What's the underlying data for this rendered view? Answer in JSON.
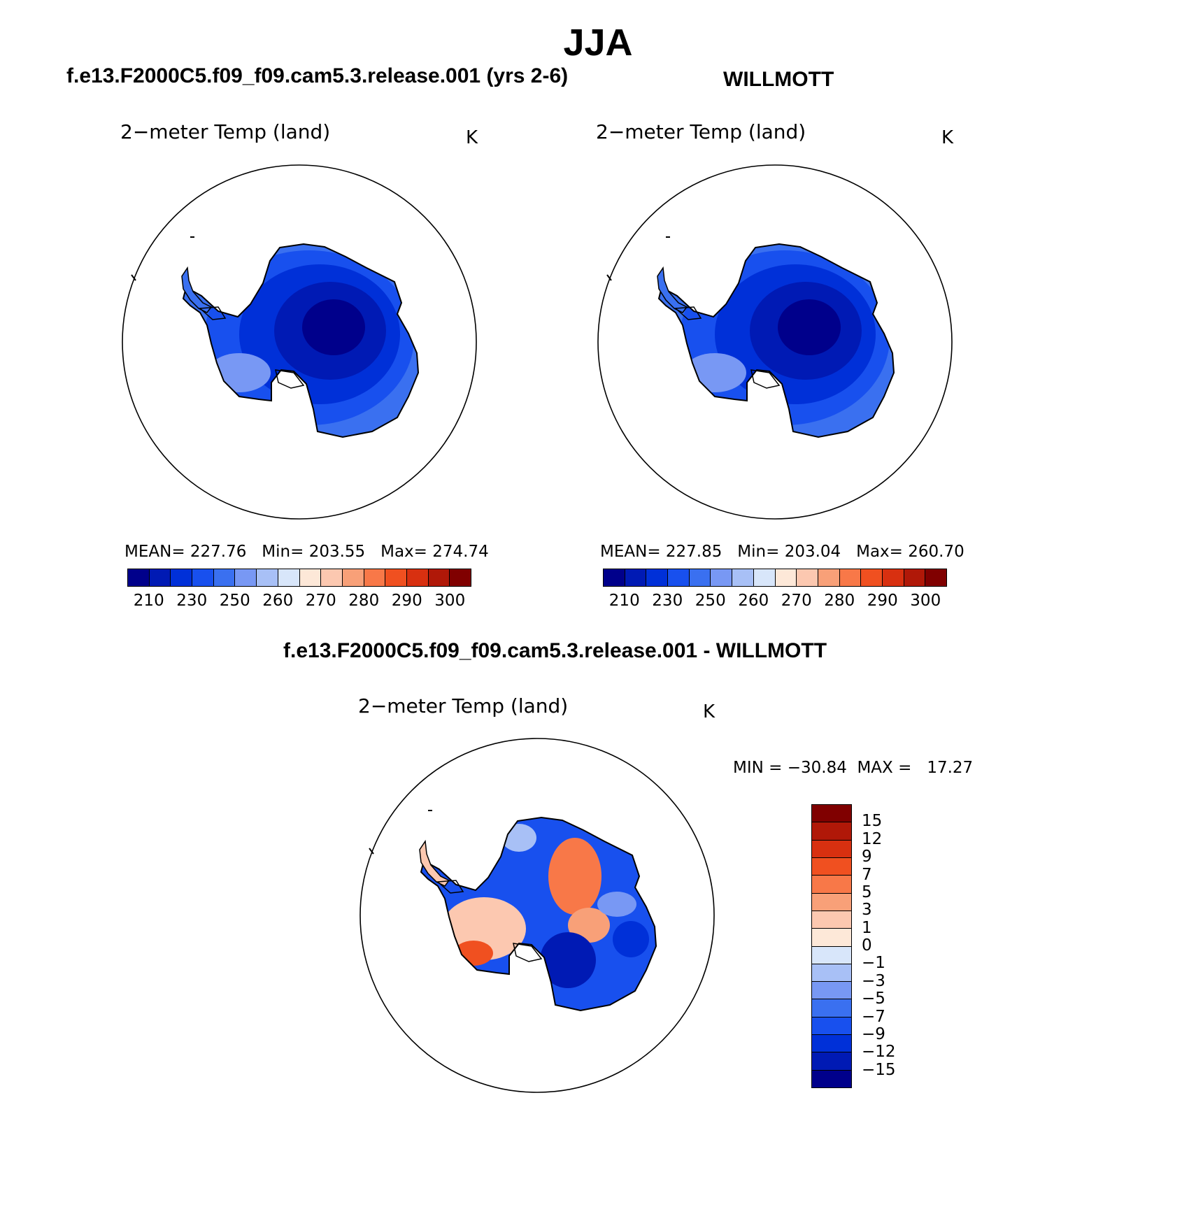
{
  "figure": {
    "title": "JJA",
    "case_title": "f.e13.F2000C5.f09_f09.cam5.3.release.001 (yrs 2-6)",
    "obs_title": "WILLMOTT",
    "diff_title": "f.e13.F2000C5.f09_f09.cam5.3.release.001 - WILLMOTT"
  },
  "panels": {
    "model": {
      "variable": "2−meter Temp (land)",
      "units": "K",
      "stats": "MEAN= 227.76   Min= 203.55   Max= 274.74",
      "fill": "cold"
    },
    "obs": {
      "variable": "2−meter Temp (land)",
      "units": "K",
      "stats": "MEAN= 227.85   Min= 203.04   Max= 260.70",
      "fill": "cold"
    },
    "diff": {
      "variable": "2−meter Temp (land)",
      "units": "K",
      "stats": "MIN = −30.84  MAX =   17.27",
      "fill": "mixed"
    }
  },
  "colorbar_abs": {
    "colors": [
      "#00008b",
      "#001ab4",
      "#0030d8",
      "#1850ee",
      "#3a70f0",
      "#7898f4",
      "#a8c0f6",
      "#d8e6fa",
      "#fde8d8",
      "#fcc8b0",
      "#f8a078",
      "#f87848",
      "#f05020",
      "#d83010",
      "#b01808",
      "#800000"
    ],
    "ticks": [
      "210",
      "230",
      "250",
      "260",
      "270",
      "280",
      "290",
      "300"
    ]
  },
  "colorbar_diff": {
    "colors": [
      "#800000",
      "#b01808",
      "#d83010",
      "#f05020",
      "#f87848",
      "#f8a078",
      "#fcc8b0",
      "#fde8d8",
      "#d8e6fa",
      "#a8c0f6",
      "#7898f4",
      "#3a70f0",
      "#1850ee",
      "#0030d8",
      "#001ab4",
      "#00008b"
    ],
    "ticks": [
      "15",
      "12",
      "9",
      "7",
      "5",
      "3",
      "1",
      "0",
      "−1",
      "−3",
      "−5",
      "−7",
      "−9",
      "−12",
      "−15"
    ]
  }
}
